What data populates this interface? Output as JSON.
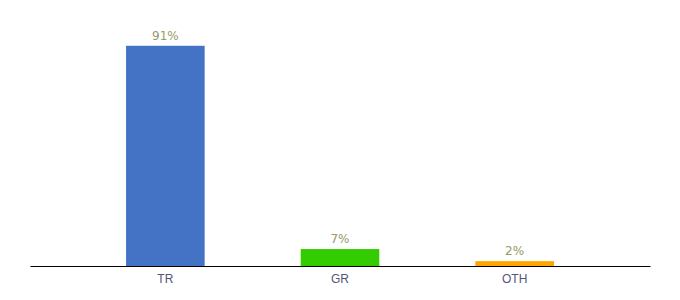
{
  "chart_data": {
    "type": "bar",
    "categories": [
      "TR",
      "GR",
      "OTH"
    ],
    "values": [
      91,
      7,
      2
    ],
    "value_labels": [
      "91%",
      "7%",
      "2%"
    ],
    "colors": [
      "#4472C4",
      "#33CC00",
      "#FFA500"
    ],
    "ylim": [
      0,
      100
    ],
    "data_labels": true,
    "tick_labels": "x",
    "grid": false
  }
}
